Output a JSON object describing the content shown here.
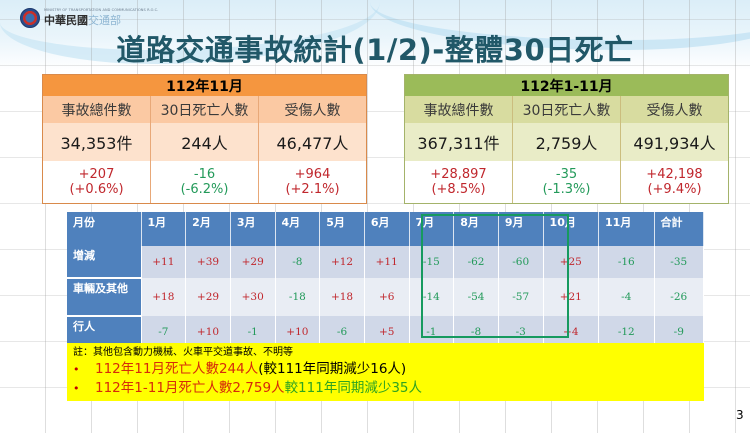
{
  "header": {
    "logo_en": "MINISTRY OF TRANSPORTATION AND COMMUNICATIONS R.O.C.",
    "logo_zh_dark": "中華民國",
    "logo_zh_light": "交通部",
    "title": "道路交通事故統計(1/2)-整體30日死亡"
  },
  "panels": [
    {
      "title": "112年11月",
      "columns": [
        "事故總件數",
        "30日死亡人數",
        "受傷人數"
      ],
      "values": [
        "34,353件",
        "244人",
        "46,477人"
      ],
      "changes": [
        {
          "abs": "+207",
          "pct": "(+0.6%)",
          "dir": "up"
        },
        {
          "abs": "-16",
          "pct": "(-6.2%)",
          "dir": "down"
        },
        {
          "abs": "+964",
          "pct": "(+2.1%)",
          "dir": "up"
        }
      ]
    },
    {
      "title": "112年1-11月",
      "columns": [
        "事故總件數",
        "30日死亡人數",
        "受傷人數"
      ],
      "values": [
        "367,311件",
        "2,759人",
        "491,934人"
      ],
      "changes": [
        {
          "abs": "+28,897",
          "pct": "(+8.5%)",
          "dir": "up"
        },
        {
          "abs": "-35",
          "pct": "(-1.3%)",
          "dir": "down"
        },
        {
          "abs": "+42,198",
          "pct": "(+9.4%)",
          "dir": "up"
        }
      ]
    }
  ],
  "monthly_table": {
    "headers": [
      "月份",
      "1月",
      "2月",
      "3月",
      "4月",
      "5月",
      "6月",
      "7月",
      "8月",
      "9月",
      "10月",
      "11月",
      "合計"
    ],
    "rows": [
      {
        "label": "增減",
        "values": [
          "+11",
          "+39",
          "+29",
          "-8",
          "+12",
          "+11",
          "-15",
          "-62",
          "-60",
          "+25",
          "-16",
          "-35"
        ]
      },
      {
        "label": "車輛及其他",
        "values": [
          "+18",
          "+29",
          "+30",
          "-18",
          "+18",
          "+6",
          "-14",
          "-54",
          "-57",
          "+21",
          "-4",
          "-26"
        ]
      },
      {
        "label": "行人",
        "values": [
          "-7",
          "+10",
          "-1",
          "+10",
          "-6",
          "+5",
          "-1",
          "-8",
          "-3",
          "+4",
          "-12",
          "-9"
        ]
      }
    ],
    "highlighted_months": [
      "7月",
      "8月",
      "9月"
    ]
  },
  "notes": {
    "footnote": "註：其他包含動力機械、火車平交道事故、不明等",
    "bullet": "•",
    "line1_red": "112年11月死亡人數244人",
    "line1_black": "(較111年同期減少16人)",
    "line2_red": "112年1-11月死亡人數2,759人",
    "line2_green": "較111年同期減少35人"
  },
  "page_number": "3",
  "colors": {
    "title": "#215868",
    "left_panel_header": "#f5963f",
    "right_panel_header": "#9bbb59",
    "table_header": "#4f81bd",
    "increase": "#c0272d",
    "decrease": "#239a5a",
    "note_bg": "#ffff00",
    "highlight_box": "#169a5f"
  }
}
